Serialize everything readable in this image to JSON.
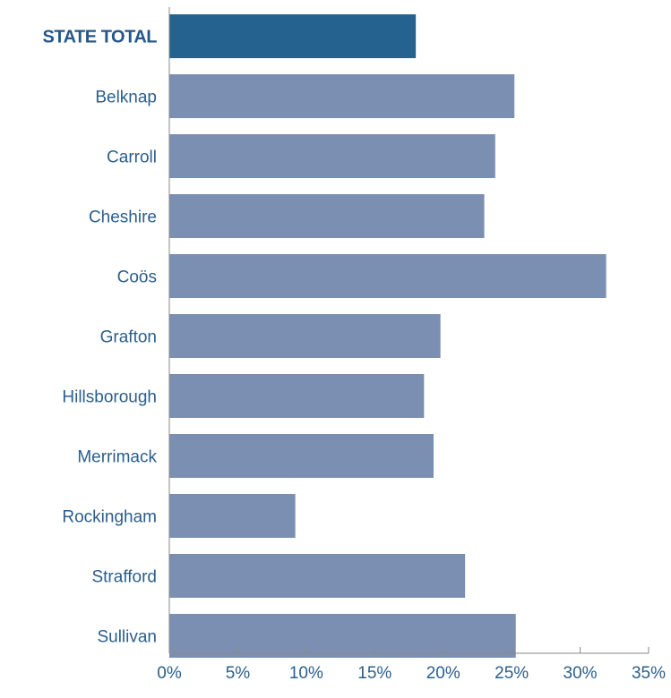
{
  "chart_data": {
    "type": "bar",
    "orientation": "horizontal",
    "title": "",
    "xlabel": "",
    "ylabel": "",
    "categories": [
      "STATE TOTAL",
      "Belknap",
      "Carroll",
      "Cheshire",
      "Coös",
      "Grafton",
      "Hillsborough",
      "Merrimack",
      "Rockingham",
      "Strafford",
      "Sullivan"
    ],
    "values": [
      18.0,
      25.2,
      23.8,
      23.0,
      31.9,
      19.8,
      18.6,
      19.3,
      9.2,
      21.6,
      25.3
    ],
    "highlight_category": "STATE TOTAL",
    "xlim": [
      0,
      35
    ],
    "ticks": [
      0,
      5,
      10,
      15,
      20,
      25,
      30,
      35
    ],
    "tick_labels": [
      "0%",
      "5%",
      "10%",
      "15%",
      "20%",
      "25%",
      "30%",
      "35%"
    ],
    "grid": false,
    "colors": {
      "bar": "#7b8fb2",
      "highlight_bar": "#26628f",
      "text": "#2b5e8c",
      "axis": "#8a8a8a"
    }
  }
}
